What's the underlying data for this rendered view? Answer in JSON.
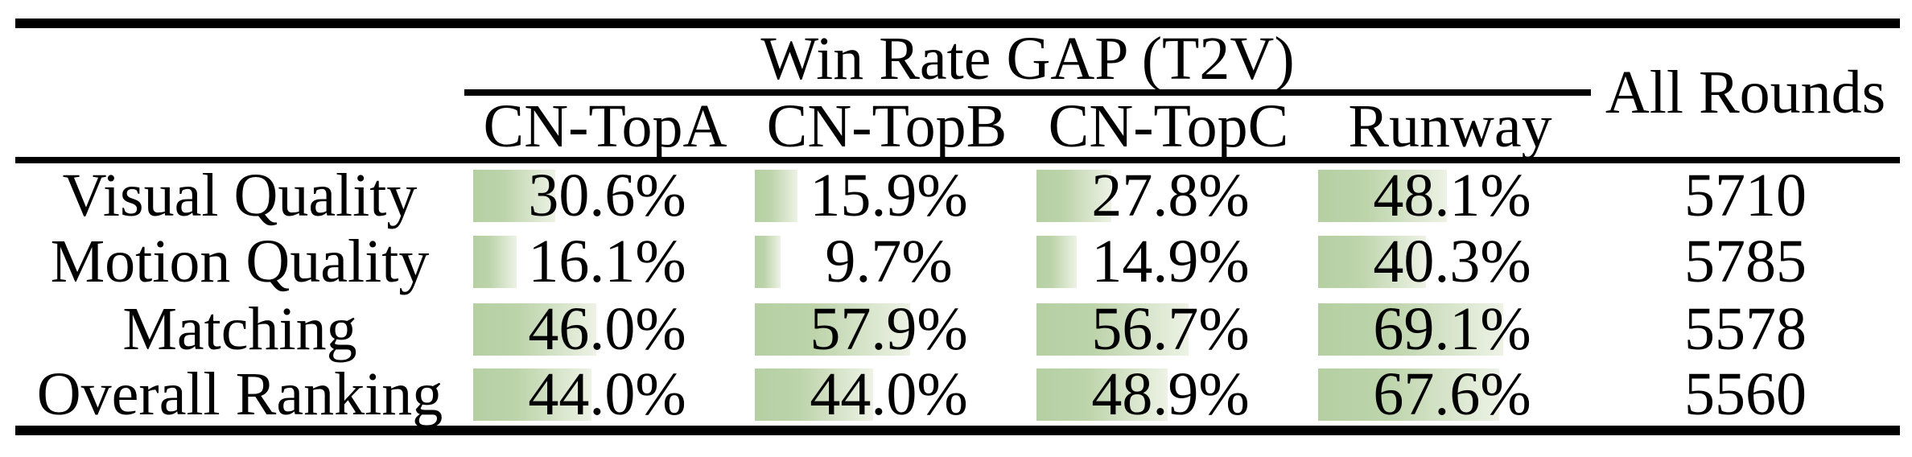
{
  "table": {
    "group_header": "Win Rate GAP (T2V)",
    "all_rounds_header": "All Rounds",
    "columns": [
      "CN-TopA",
      "CN-TopB",
      "CN-TopC",
      "Runway"
    ],
    "rows": [
      {
        "label": "Visual Quality",
        "cells": [
          {
            "text": "30.6%",
            "value": 30.6
          },
          {
            "text": "15.9%",
            "value": 15.9
          },
          {
            "text": "27.8%",
            "value": 27.8
          },
          {
            "text": "48.1%",
            "value": 48.1
          }
        ],
        "all_rounds": "5710"
      },
      {
        "label": "Motion Quality",
        "cells": [
          {
            "text": "16.1%",
            "value": 16.1
          },
          {
            "text": "9.7%",
            "value": 9.7
          },
          {
            "text": "14.9%",
            "value": 14.9
          },
          {
            "text": "40.3%",
            "value": 40.3
          }
        ],
        "all_rounds": "5785"
      },
      {
        "label": "Matching",
        "cells": [
          {
            "text": "46.0%",
            "value": 46.0
          },
          {
            "text": "57.9%",
            "value": 57.9
          },
          {
            "text": "56.7%",
            "value": 56.7
          },
          {
            "text": "69.1%",
            "value": 69.1
          }
        ],
        "all_rounds": "5578"
      },
      {
        "label": "Overall Ranking",
        "cells": [
          {
            "text": "44.0%",
            "value": 44.0
          },
          {
            "text": "44.0%",
            "value": 44.0
          },
          {
            "text": "48.9%",
            "value": 48.9
          },
          {
            "text": "67.6%",
            "value": 67.6
          }
        ],
        "all_rounds": "5560"
      }
    ]
  },
  "colors": {
    "bar_green_start": "#b5cfa2",
    "bar_green_end": "#edf2e5",
    "rule": "#000000",
    "background": "#ffffff",
    "text": "#000000"
  },
  "chart_data": {
    "type": "table",
    "title": "Win Rate GAP (T2V)",
    "row_categories": [
      "Visual Quality",
      "Motion Quality",
      "Matching",
      "Overall Ranking"
    ],
    "series": [
      {
        "name": "CN-TopA",
        "values": [
          30.6,
          16.1,
          46.0,
          44.0
        ]
      },
      {
        "name": "CN-TopB",
        "values": [
          15.9,
          9.7,
          57.9,
          44.0
        ]
      },
      {
        "name": "CN-TopC",
        "values": [
          27.8,
          14.9,
          56.7,
          48.9
        ]
      },
      {
        "name": "Runway",
        "values": [
          48.1,
          40.3,
          69.1,
          67.6
        ]
      }
    ],
    "extra_column": {
      "name": "All Rounds",
      "values": [
        5710,
        5785,
        5578,
        5560
      ]
    },
    "unit": "%",
    "value_range": [
      0,
      100
    ],
    "layout_hints": "in-cell horizontal bars with green-to-white left-to-right gradient, bar width proportional to percentage of cell width; thick black top/bottom rules, medium rule under headers, partial rule under group header spanning the four win-rate columns"
  }
}
